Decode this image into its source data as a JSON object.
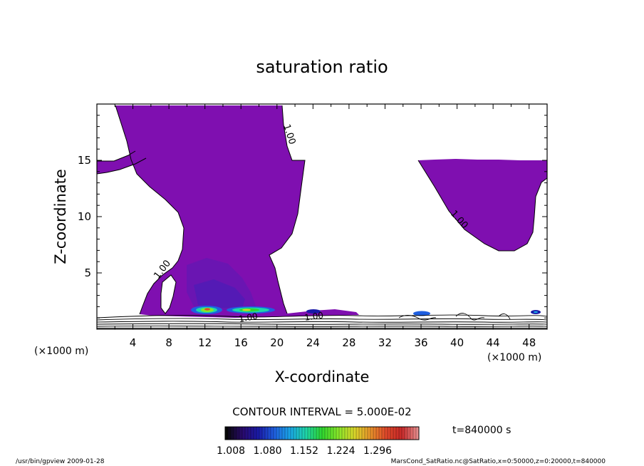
{
  "chart_data": {
    "type": "contour",
    "title": "saturation ratio",
    "xlabel": "X-coordinate",
    "ylabel": "Z-coordinate",
    "x_unit_left": "(×1000 m)",
    "x_unit_right": "(×1000 m)",
    "xlim": [
      0,
      50
    ],
    "ylim": [
      0,
      20
    ],
    "x_ticks": [
      4,
      8,
      12,
      16,
      20,
      24,
      28,
      32,
      36,
      40,
      44,
      48
    ],
    "x_tick_labels": [
      "4",
      "8",
      "12",
      "16",
      "20",
      "24",
      "28",
      "32",
      "36",
      "40",
      "44",
      "48"
    ],
    "y_ticks": [
      5,
      10,
      15
    ],
    "y_tick_labels": [
      "5",
      "10",
      "15"
    ],
    "contour_labels": [
      "1.00",
      "1.00",
      "1.00",
      "1.00",
      "1.00"
    ],
    "contour_interval_text": "CONTOUR INTERVAL = 5.000E-02",
    "time_text": "t=840000 s",
    "colorbar": {
      "labels": [
        "1.008",
        "1.080",
        "1.152",
        "1.224",
        "1.296"
      ],
      "min": 1.008,
      "max": 1.296
    },
    "grid": false,
    "legend": "colorbar-bottom-center",
    "colors": {
      "fill_main": "#7f0fb0",
      "colormap": [
        "#080808",
        "#2a0a6e",
        "#1a1aa8",
        "#1f5fe0",
        "#1aa6e6",
        "#1fd6a8",
        "#2ed62e",
        "#86e62a",
        "#d8d82a",
        "#e8962a",
        "#e04a2a",
        "#c82828",
        "#e68c8c"
      ]
    }
  },
  "footer": {
    "left": "/usr/bin/gpview   2009-01-28",
    "right": "MarsCond_SatRatio.nc@SatRatio,x=0:50000,z=0:20000,t=840000"
  }
}
